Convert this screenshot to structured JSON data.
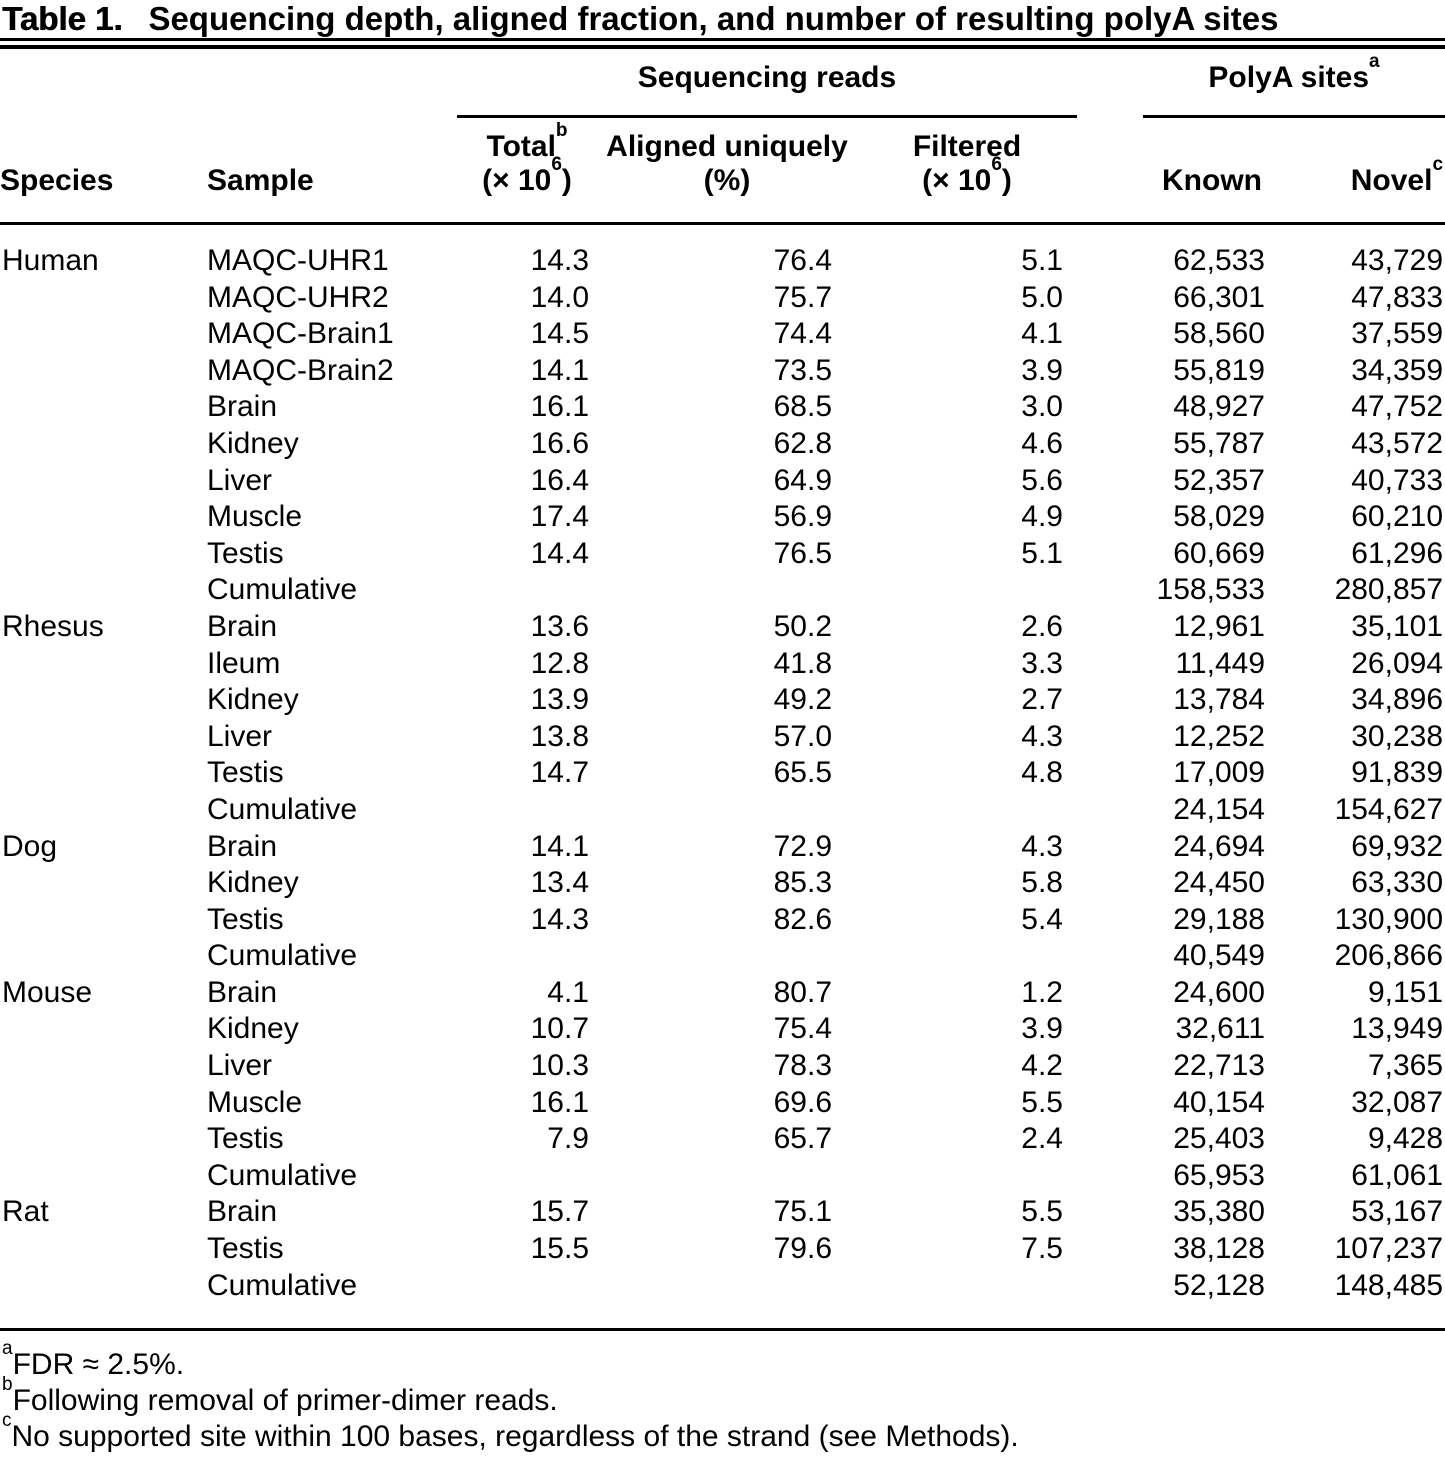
{
  "title": {
    "label": "Table 1.",
    "text": "Sequencing depth, aligned fraction, and number of resulting polyA sites"
  },
  "header": {
    "group_sequencing": "Sequencing reads",
    "group_polya": {
      "text": "PolyA sites",
      "sup": "a"
    },
    "cols": {
      "species": "Species",
      "sample": "Sample",
      "total": {
        "text": "Total",
        "sup": "b",
        "unit_pre": "(× 10",
        "unit_sup": "6",
        "unit_post": ")"
      },
      "aligned": {
        "text": "Aligned uniquely",
        "unit": "(%)"
      },
      "filtered": {
        "text": "Filtered",
        "unit_pre": "(× 10",
        "unit_sup": "6",
        "unit_post": ")"
      },
      "known": "Known",
      "novel": {
        "text": "Novel",
        "sup": "c"
      }
    }
  },
  "groups": [
    {
      "species": "Human",
      "rows": [
        {
          "sample": "MAQC-UHR1",
          "total": "14.3",
          "aligned": "76.4",
          "filtered": "5.1",
          "known": "62,533",
          "novel": "43,729"
        },
        {
          "sample": "MAQC-UHR2",
          "total": "14.0",
          "aligned": "75.7",
          "filtered": "5.0",
          "known": "66,301",
          "novel": "47,833"
        },
        {
          "sample": "MAQC-Brain1",
          "total": "14.5",
          "aligned": "74.4",
          "filtered": "4.1",
          "known": "58,560",
          "novel": "37,559"
        },
        {
          "sample": "MAQC-Brain2",
          "total": "14.1",
          "aligned": "73.5",
          "filtered": "3.9",
          "known": "55,819",
          "novel": "34,359"
        },
        {
          "sample": "Brain",
          "total": "16.1",
          "aligned": "68.5",
          "filtered": "3.0",
          "known": "48,927",
          "novel": "47,752"
        },
        {
          "sample": "Kidney",
          "total": "16.6",
          "aligned": "62.8",
          "filtered": "4.6",
          "known": "55,787",
          "novel": "43,572"
        },
        {
          "sample": "Liver",
          "total": "16.4",
          "aligned": "64.9",
          "filtered": "5.6",
          "known": "52,357",
          "novel": "40,733"
        },
        {
          "sample": "Muscle",
          "total": "17.4",
          "aligned": "56.9",
          "filtered": "4.9",
          "known": "58,029",
          "novel": "60,210"
        },
        {
          "sample": "Testis",
          "total": "14.4",
          "aligned": "76.5",
          "filtered": "5.1",
          "known": "60,669",
          "novel": "61,296"
        },
        {
          "sample": "Cumulative",
          "total": "",
          "aligned": "",
          "filtered": "",
          "known": "158,533",
          "novel": "280,857"
        }
      ]
    },
    {
      "species": "Rhesus",
      "rows": [
        {
          "sample": "Brain",
          "total": "13.6",
          "aligned": "50.2",
          "filtered": "2.6",
          "known": "12,961",
          "novel": "35,101"
        },
        {
          "sample": "Ileum",
          "total": "12.8",
          "aligned": "41.8",
          "filtered": "3.3",
          "known": "11,449",
          "novel": "26,094"
        },
        {
          "sample": "Kidney",
          "total": "13.9",
          "aligned": "49.2",
          "filtered": "2.7",
          "known": "13,784",
          "novel": "34,896"
        },
        {
          "sample": "Liver",
          "total": "13.8",
          "aligned": "57.0",
          "filtered": "4.3",
          "known": "12,252",
          "novel": "30,238"
        },
        {
          "sample": "Testis",
          "total": "14.7",
          "aligned": "65.5",
          "filtered": "4.8",
          "known": "17,009",
          "novel": "91,839"
        },
        {
          "sample": "Cumulative",
          "total": "",
          "aligned": "",
          "filtered": "",
          "known": "24,154",
          "novel": "154,627"
        }
      ]
    },
    {
      "species": "Dog",
      "rows": [
        {
          "sample": "Brain",
          "total": "14.1",
          "aligned": "72.9",
          "filtered": "4.3",
          "known": "24,694",
          "novel": "69,932"
        },
        {
          "sample": "Kidney",
          "total": "13.4",
          "aligned": "85.3",
          "filtered": "5.8",
          "known": "24,450",
          "novel": "63,330"
        },
        {
          "sample": "Testis",
          "total": "14.3",
          "aligned": "82.6",
          "filtered": "5.4",
          "known": "29,188",
          "novel": "130,900"
        },
        {
          "sample": "Cumulative",
          "total": "",
          "aligned": "",
          "filtered": "",
          "known": "40,549",
          "novel": "206,866"
        }
      ]
    },
    {
      "species": "Mouse",
      "rows": [
        {
          "sample": "Brain",
          "total": "4.1",
          "aligned": "80.7",
          "filtered": "1.2",
          "known": "24,600",
          "novel": "9,151"
        },
        {
          "sample": "Kidney",
          "total": "10.7",
          "aligned": "75.4",
          "filtered": "3.9",
          "known": "32,611",
          "novel": "13,949"
        },
        {
          "sample": "Liver",
          "total": "10.3",
          "aligned": "78.3",
          "filtered": "4.2",
          "known": "22,713",
          "novel": "7,365"
        },
        {
          "sample": "Muscle",
          "total": "16.1",
          "aligned": "69.6",
          "filtered": "5.5",
          "known": "40,154",
          "novel": "32,087"
        },
        {
          "sample": "Testis",
          "total": "7.9",
          "aligned": "65.7",
          "filtered": "2.4",
          "known": "25,403",
          "novel": "9,428"
        },
        {
          "sample": "Cumulative",
          "total": "",
          "aligned": "",
          "filtered": "",
          "known": "65,953",
          "novel": "61,061"
        }
      ]
    },
    {
      "species": "Rat",
      "rows": [
        {
          "sample": "Brain",
          "total": "15.7",
          "aligned": "75.1",
          "filtered": "5.5",
          "known": "35,380",
          "novel": "53,167"
        },
        {
          "sample": "Testis",
          "total": "15.5",
          "aligned": "79.6",
          "filtered": "7.5",
          "known": "38,128",
          "novel": "107,237"
        },
        {
          "sample": "Cumulative",
          "total": "",
          "aligned": "",
          "filtered": "",
          "known": "52,128",
          "novel": "148,485"
        }
      ]
    }
  ],
  "footnotes": [
    {
      "marker": "a",
      "text": "FDR ≈ 2.5%."
    },
    {
      "marker": "b",
      "text": "Following removal of primer-dimer reads."
    },
    {
      "marker": "c",
      "text": "No supported site within 100 bases, regardless of the strand (see Methods)."
    }
  ]
}
